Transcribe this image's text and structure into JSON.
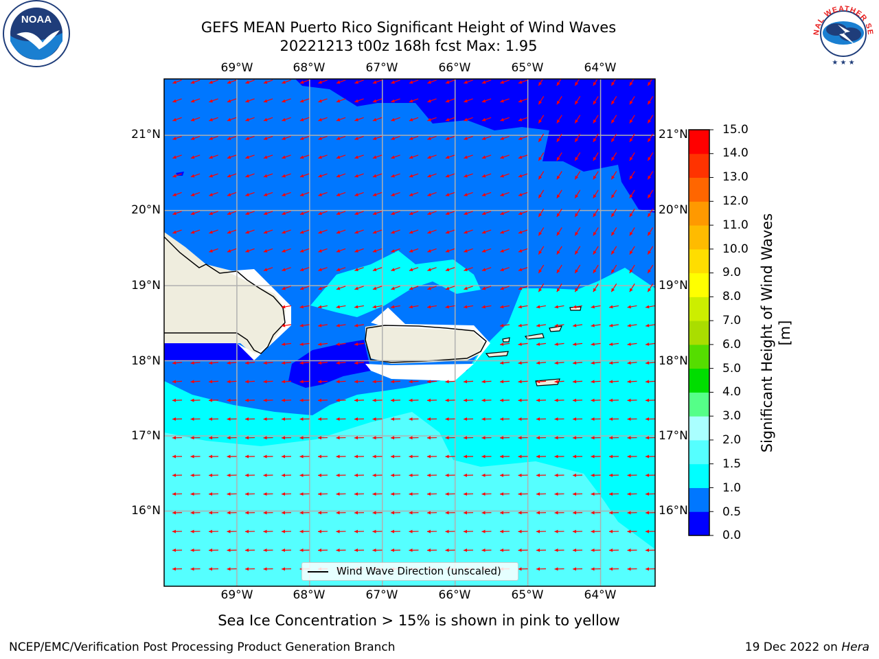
{
  "title": {
    "line1": "GEFS MEAN Puerto Rico Significant Height of Wind Waves",
    "line2": "20221213 t00z 168h fcst   Max: 1.95"
  },
  "axes": {
    "lon_labels": [
      "69°W",
      "68°W",
      "67°W",
      "66°W",
      "65°W",
      "64°W"
    ],
    "lat_labels": [
      "21°N",
      "20°N",
      "19°N",
      "18°N",
      "17°N",
      "16°N"
    ],
    "lon_range": [
      -70.0,
      -63.25
    ],
    "lat_range": [
      15.0,
      21.75
    ],
    "grid": true
  },
  "colorbar": {
    "label": "Significant Height of Wind Waves [m]",
    "ticks": [
      "0.0",
      "0.5",
      "1.0",
      "1.5",
      "2.0",
      "3.0",
      "4.0",
      "5.0",
      "6.0",
      "7.0",
      "8.0",
      "9.0",
      "10.0",
      "11.0",
      "12.0",
      "13.0",
      "14.0",
      "15.0"
    ],
    "colors": [
      "#0000ff",
      "#0077ff",
      "#00ffff",
      "#55ffff",
      "#aaffff",
      "#55ff88",
      "#00dd00",
      "#55dd00",
      "#aadd00",
      "#ccee00",
      "#ffff00",
      "#ffdd00",
      "#ffbb00",
      "#ff9900",
      "#ff6600",
      "#ff3300",
      "#ff0000"
    ]
  },
  "legend": {
    "label": "Wind Wave Direction (unscaled)"
  },
  "colors": {
    "land": "#efedde",
    "arrow": "#ff0000",
    "grid": "#b0b0b0"
  },
  "logos": {
    "noaa_text": "NOAA",
    "nws_text": "NATIONAL WEATHER SERVICE"
  },
  "footer": {
    "ice_note": "Sea Ice Concentration > 15% is shown in pink to yellow",
    "left": "NCEP/EMC/Verification Post Processing Product Generation Branch",
    "right_date": "19 Dec 2022 on",
    "right_machine": "Hera"
  }
}
